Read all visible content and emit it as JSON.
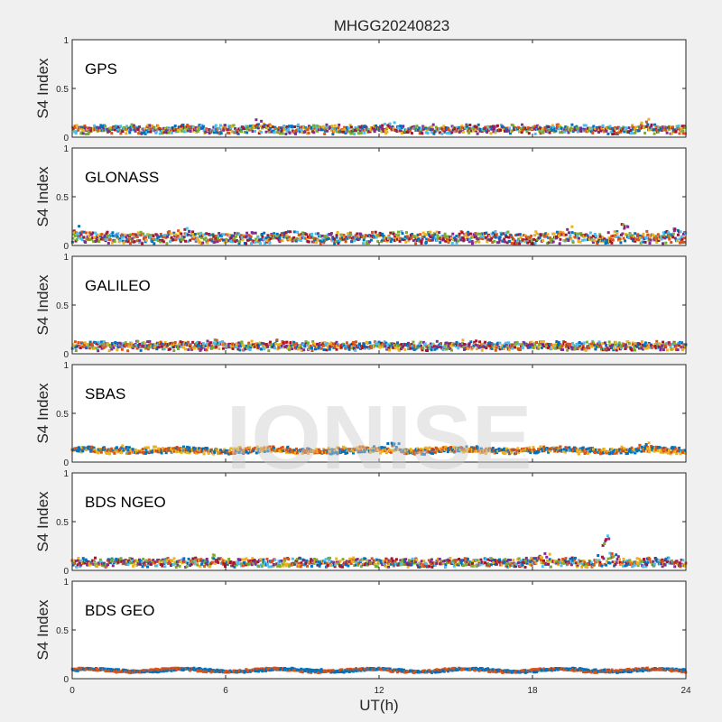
{
  "figure": {
    "title": "MHGG20240823",
    "watermark": "IONISE",
    "background": "#f0f0f0"
  },
  "chart_data": {
    "type": "scatter",
    "xlabel": "UT(h)",
    "ylabel": "S4 Index",
    "xlim": [
      0,
      24
    ],
    "ylim": [
      0,
      1
    ],
    "xticks": [
      0,
      6,
      12,
      18,
      24
    ],
    "yticks": [
      0,
      0.5,
      1
    ],
    "grid": false,
    "palette": [
      "#0072BD",
      "#D95319",
      "#EDB120",
      "#7E2F8E",
      "#77AC30",
      "#4DBEEE",
      "#A2142F"
    ],
    "panels": [
      {
        "name": "GPS",
        "colors": 7,
        "base": 0.08,
        "amp": 0.035,
        "bumps": [
          [
            7.2,
            0.12
          ],
          [
            12.5,
            0.09
          ],
          [
            22.5,
            0.08
          ]
        ]
      },
      {
        "name": "GLONASS",
        "colors": 7,
        "base": 0.08,
        "amp": 0.05,
        "bumps": [
          [
            0.2,
            0.1
          ],
          [
            4.5,
            0.08
          ],
          [
            19.5,
            0.1
          ],
          [
            21.5,
            0.15
          ],
          [
            23.5,
            0.09
          ]
        ]
      },
      {
        "name": "GALILEO",
        "colors": 7,
        "base": 0.08,
        "amp": 0.035,
        "bumps": [
          [
            5.5,
            0.06
          ],
          [
            8.3,
            0.07
          ],
          [
            15.5,
            0.06
          ]
        ]
      },
      {
        "name": "SBAS",
        "colors": 3,
        "base": 0.12,
        "amp": 0.025,
        "bumps": [
          [
            2.0,
            0.06
          ],
          [
            12.5,
            0.1
          ],
          [
            22.5,
            0.08
          ]
        ]
      },
      {
        "name": "BDS NGEO",
        "colors": 7,
        "base": 0.08,
        "amp": 0.035,
        "bumps": [
          [
            5.5,
            0.09
          ],
          [
            18.5,
            0.08
          ],
          [
            20.9,
            0.28
          ]
        ]
      },
      {
        "name": "BDS GEO",
        "colors": 2,
        "base": 0.085,
        "amp": 0.01,
        "bumps": [
          [
            9.8,
            0.03
          ],
          [
            20.8,
            0.03
          ]
        ]
      }
    ]
  }
}
